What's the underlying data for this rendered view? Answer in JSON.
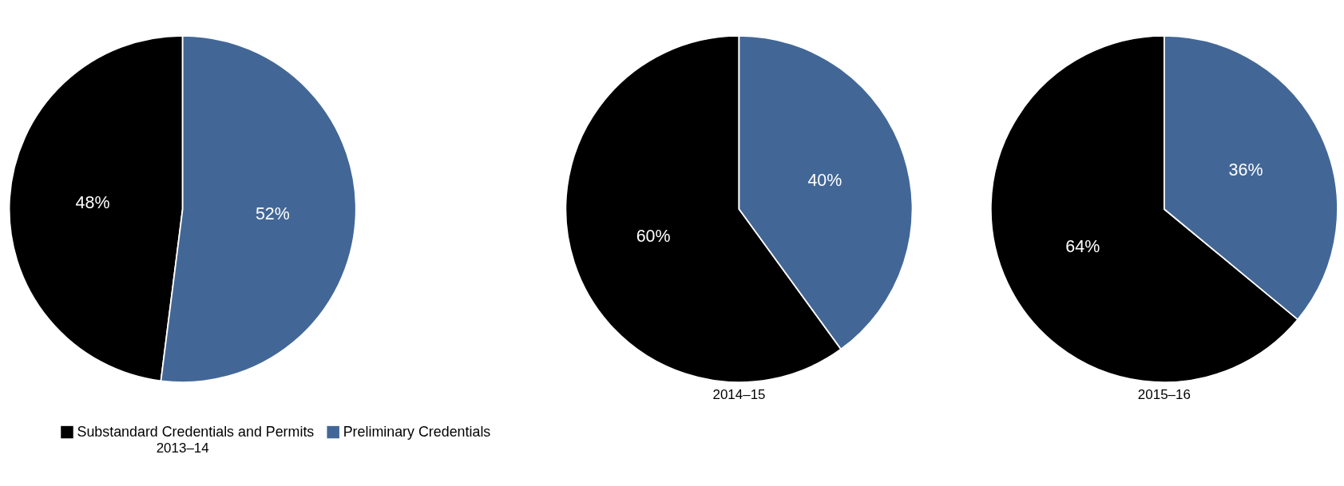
{
  "chart_data": [
    {
      "type": "pie",
      "title": "2013–14",
      "categories": [
        "Substandard Credentials and Permits",
        "Preliminary Credentials"
      ],
      "values": [
        48,
        52
      ],
      "colors": [
        "#000000",
        "#426797"
      ],
      "value_labels": [
        "48%",
        "52%"
      ],
      "legend": "bottom"
    },
    {
      "type": "pie",
      "title": "2014–15",
      "categories": [
        null,
        null
      ],
      "values": [
        60,
        40
      ],
      "colors": [
        "#000000",
        "#426797"
      ],
      "value_labels": [
        "60%",
        "40%"
      ]
    },
    {
      "type": "pie",
      "title": "2015–16",
      "categories": [
        null,
        null
      ],
      "values": [
        64,
        36
      ],
      "colors": [
        "#000000",
        "#426797"
      ],
      "value_labels": [
        "64%",
        "36%"
      ]
    }
  ]
}
